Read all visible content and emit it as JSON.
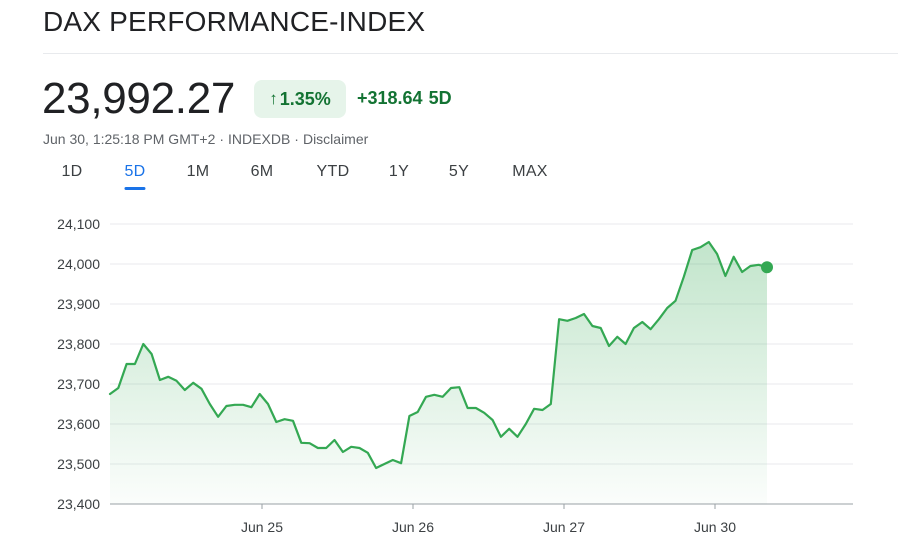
{
  "header": {
    "title": "DAX PERFORMANCE-INDEX"
  },
  "quote": {
    "price": "23,992.27",
    "change_percent": "1.35%",
    "change_abs": "+318.64",
    "period": "5D",
    "timestamp": "Jun 30, 1:25:18 PM GMT+2",
    "source": "INDEXDB",
    "disclaimer": "Disclaimer",
    "separator": "·"
  },
  "tabs": [
    {
      "label": "1D",
      "active": false
    },
    {
      "label": "5D",
      "active": true
    },
    {
      "label": "1M",
      "active": false
    },
    {
      "label": "6M",
      "active": false
    },
    {
      "label": "YTD",
      "active": false
    },
    {
      "label": "1Y",
      "active": false
    },
    {
      "label": "5Y",
      "active": false
    },
    {
      "label": "MAX",
      "active": false
    }
  ],
  "colors": {
    "line": "#34a853",
    "positive_text": "#137333",
    "pill_bg": "#e6f4ea",
    "active_tab": "#1a73e8",
    "grid": "#e8eaed"
  },
  "chart_data": {
    "type": "area",
    "ylim": [
      23400,
      24100
    ],
    "yticks": [
      24100,
      24000,
      23900,
      23800,
      23700,
      23600,
      23500,
      23400
    ],
    "ytick_labels": [
      "24,100",
      "24,000",
      "23,900",
      "23,800",
      "23,700",
      "23,600",
      "23,500",
      "23,400"
    ],
    "xticks": [
      "Jun 25",
      "Jun 26",
      "Jun 27",
      "Jun 30"
    ],
    "grid": true,
    "series": [
      {
        "values": [
          23675,
          23690,
          23750,
          23750,
          23800,
          23775,
          23710,
          23718,
          23708,
          23685,
          23703,
          23688,
          23650,
          23618,
          23645,
          23648,
          23648,
          23642,
          23675,
          23650,
          23605,
          23612,
          23608,
          23553,
          23552,
          23540,
          23540,
          23560,
          23530,
          23543,
          23540,
          23528,
          23490,
          23500,
          23510,
          23502,
          23620,
          23630,
          23668,
          23673,
          23668,
          23690,
          23692,
          23640,
          23640,
          23628,
          23610,
          23568,
          23588,
          23568,
          23600,
          23638,
          23635,
          23650,
          23862,
          23858,
          23865,
          23875,
          23845,
          23840,
          23795,
          23818,
          23800,
          23840,
          23855,
          23837,
          23862,
          23890,
          23908,
          23968,
          24035,
          24042,
          24055,
          24025,
          23970,
          24018,
          23980,
          23995,
          23998,
          23992
        ]
      }
    ]
  }
}
